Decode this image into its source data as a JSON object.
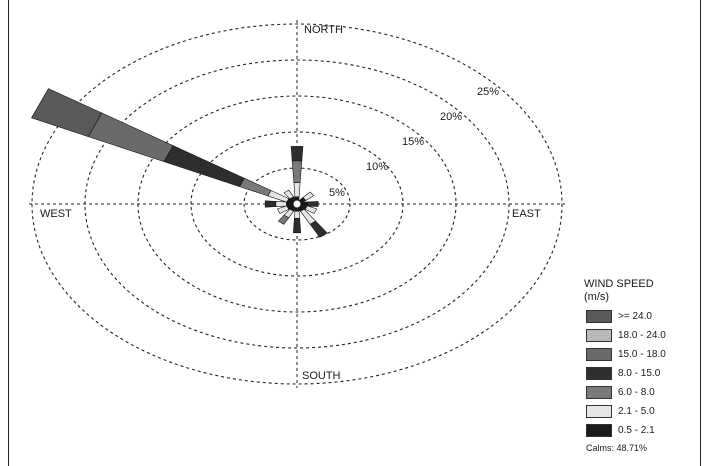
{
  "chart_data": {
    "type": "wind-rose",
    "directions": {
      "north": "NORTH",
      "south": "SOUTH",
      "east": "EAST",
      "west": "WEST"
    },
    "ring_labels": [
      "5%",
      "10%",
      "15%",
      "20%",
      "25%"
    ],
    "rings": [
      5,
      10,
      15,
      20,
      25
    ],
    "max_ring": 25,
    "legend": {
      "title": "WIND SPEED",
      "unit": "(m/s)",
      "classes": [
        {
          "label": ">= 24.0",
          "color": "#5a5a5a"
        },
        {
          "label": "18.0 - 24.0",
          "color": "#b8b8b8"
        },
        {
          "label": "15.0 - 18.0",
          "color": "#6a6a6a"
        },
        {
          "label": "8.0 - 15.0",
          "color": "#2e2e2e"
        },
        {
          "label": "6.0 - 8.0",
          "color": "#7a7a7a"
        },
        {
          "label": "2.1 - 5.0",
          "color": "#e6e6e6"
        },
        {
          "label": "0.5 - 2.1",
          "color": "#1a1a1a"
        }
      ],
      "calms": "Calms: 48.71%"
    },
    "petals": [
      {
        "direction_deg": 300,
        "total_pct": 28,
        "segments": [
          {
            "class": "0.5 - 2.1",
            "pct": 1
          },
          {
            "class": "2.1 - 5.0",
            "pct": 2
          },
          {
            "class": "6.0 - 8.0",
            "pct": 3
          },
          {
            "class": "8.0 - 15.0",
            "pct": 8
          },
          {
            "class": "15.0 - 18.0",
            "pct": 8
          },
          {
            "class": ">= 24.0",
            "pct": 6
          }
        ]
      },
      {
        "direction_deg": 0,
        "total_pct": 8,
        "segments": [
          {
            "class": "0.5 - 2.1",
            "pct": 1
          },
          {
            "class": "2.1 - 5.0",
            "pct": 2
          },
          {
            "class": "6.0 - 8.0",
            "pct": 3
          },
          {
            "class": "8.0 - 15.0",
            "pct": 2
          }
        ]
      },
      {
        "direction_deg": 150,
        "total_pct": 5,
        "segments": [
          {
            "class": "0.5 - 2.1",
            "pct": 1
          },
          {
            "class": "2.1 - 5.0",
            "pct": 2
          },
          {
            "class": "8.0 - 15.0",
            "pct": 2
          }
        ]
      },
      {
        "direction_deg": 180,
        "total_pct": 4,
        "segments": [
          {
            "class": "0.5 - 2.1",
            "pct": 1
          },
          {
            "class": "2.1 - 5.0",
            "pct": 1
          },
          {
            "class": "8.0 - 15.0",
            "pct": 2
          }
        ]
      },
      {
        "direction_deg": 210,
        "total_pct": 3,
        "segments": [
          {
            "class": "0.5 - 2.1",
            "pct": 1
          },
          {
            "class": "2.1 - 5.0",
            "pct": 1
          },
          {
            "class": "6.0 - 8.0",
            "pct": 1
          }
        ]
      },
      {
        "direction_deg": 270,
        "total_pct": 3,
        "segments": [
          {
            "class": "0.5 - 2.1",
            "pct": 1
          },
          {
            "class": "2.1 - 5.0",
            "pct": 1
          },
          {
            "class": "8.0 - 15.0",
            "pct": 1
          }
        ]
      },
      {
        "direction_deg": 90,
        "total_pct": 2,
        "segments": [
          {
            "class": "0.5 - 2.1",
            "pct": 1
          },
          {
            "class": "8.0 - 15.0",
            "pct": 1
          }
        ]
      },
      {
        "direction_deg": 45,
        "total_pct": 2,
        "segments": [
          {
            "class": "0.5 - 2.1",
            "pct": 1
          },
          {
            "class": "2.1 - 5.0",
            "pct": 1
          }
        ]
      },
      {
        "direction_deg": 330,
        "total_pct": 2,
        "segments": [
          {
            "class": "0.5 - 2.1",
            "pct": 1
          },
          {
            "class": "2.1 - 5.0",
            "pct": 1
          }
        ]
      },
      {
        "direction_deg": 120,
        "total_pct": 2,
        "segments": [
          {
            "class": "0.5 - 2.1",
            "pct": 1
          },
          {
            "class": "2.1 - 5.0",
            "pct": 1
          }
        ]
      },
      {
        "direction_deg": 240,
        "total_pct": 2,
        "segments": [
          {
            "class": "0.5 - 2.1",
            "pct": 1
          },
          {
            "class": "2.1 - 5.0",
            "pct": 1
          }
        ]
      }
    ]
  }
}
